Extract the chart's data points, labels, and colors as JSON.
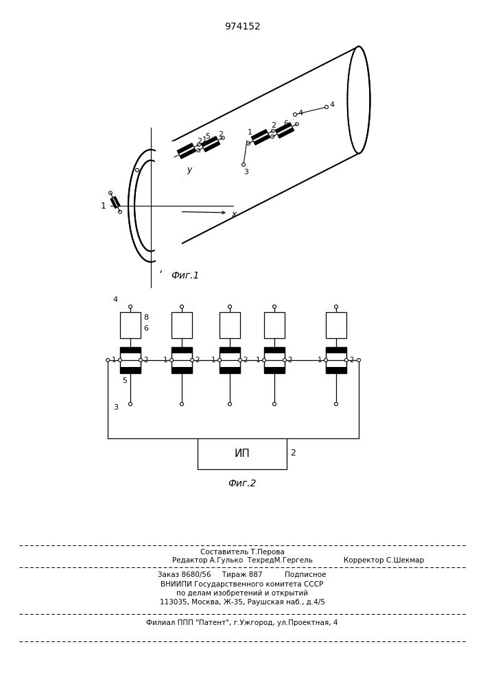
{
  "title": "974152",
  "bg_color": "#ffffff",
  "fig1_label": "Фиг.1",
  "fig2_label": "Фиг.2",
  "footer_line1": "Составитель Т.Перова",
  "footer_line2": "Редактор А.Гулько  ТехредМ.Гергель",
  "footer_line2r": "Корректор С.Шекмар",
  "footer_line3": "Заказ 8680/56     Тираж 887          Подписное",
  "footer_line4": "ВНИИПИ Государственного комитета СССР",
  "footer_line5": "по делам изобретений и открытий",
  "footer_line6": "113035, Москва, Ж-35, Раушская наб., д.4/5",
  "footer_line7": "Филиал ППП \"Патент\", г.Ужгород, ул.Проектная, 4",
  "ip_label": "ип"
}
